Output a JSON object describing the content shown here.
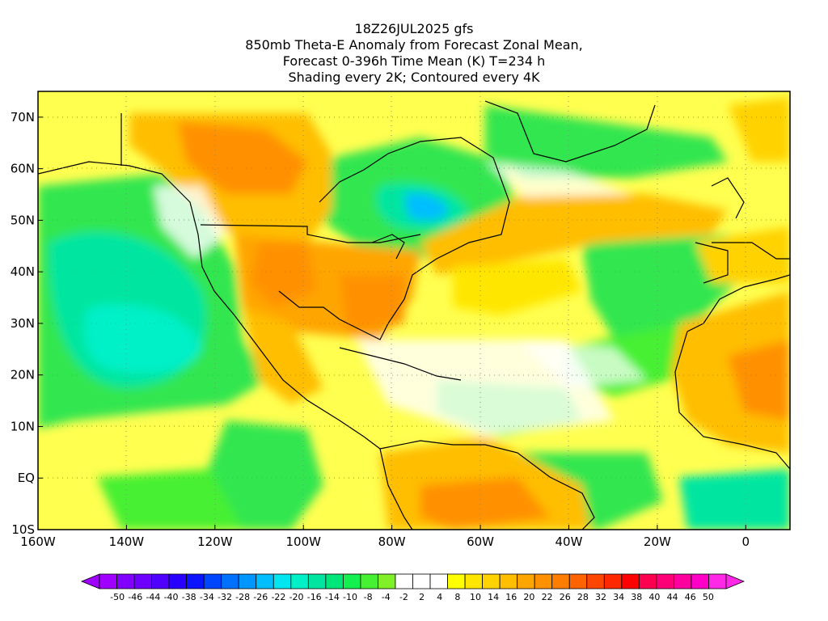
{
  "title": {
    "line1": "18Z26JUL2025 gfs",
    "line2": "850mb Theta-E Anomaly from Forecast Zonal Mean,",
    "line3": "Forecast 0-396h Time Mean (K) T=234 h",
    "line4": "Shading every 2K; Contoured every 4K"
  },
  "map": {
    "lon_range": [
      -160,
      10
    ],
    "lat_range": [
      -10,
      75
    ],
    "lon_ticks": [
      {
        "value": -160,
        "label": "160W"
      },
      {
        "value": -140,
        "label": "140W"
      },
      {
        "value": -120,
        "label": "120W"
      },
      {
        "value": -100,
        "label": "100W"
      },
      {
        "value": -80,
        "label": "80W"
      },
      {
        "value": -60,
        "label": "60W"
      },
      {
        "value": -40,
        "label": "40W"
      },
      {
        "value": -20,
        "label": "20W"
      },
      {
        "value": 0,
        "label": "0"
      }
    ],
    "lat_ticks": [
      {
        "value": 70,
        "label": "70N"
      },
      {
        "value": 60,
        "label": "60N"
      },
      {
        "value": 50,
        "label": "50N"
      },
      {
        "value": 40,
        "label": "40N"
      },
      {
        "value": 30,
        "label": "30N"
      },
      {
        "value": 20,
        "label": "20N"
      },
      {
        "value": 10,
        "label": "10N"
      },
      {
        "value": 0,
        "label": "EQ"
      },
      {
        "value": -10,
        "label": "10S"
      }
    ],
    "grid": "dotted"
  },
  "colorbar": {
    "labels": [
      "-50",
      "-46",
      "-44",
      "-40",
      "-38",
      "-34",
      "-32",
      "-28",
      "-26",
      "-22",
      "-20",
      "-16",
      "-14",
      "-10",
      "-8",
      "-4",
      "-2",
      "2",
      "4",
      "8",
      "10",
      "14",
      "16",
      "20",
      "22",
      "26",
      "28",
      "32",
      "34",
      "38",
      "40",
      "44",
      "46",
      "50"
    ],
    "colors": [
      "#a000ff",
      "#8200ff",
      "#6e00ff",
      "#5000ff",
      "#2800ff",
      "#0a14ff",
      "#0046ff",
      "#0070ff",
      "#0096ff",
      "#00beff",
      "#00e6f0",
      "#00f0c8",
      "#00e6a0",
      "#00e678",
      "#14f050",
      "#46f032",
      "#80f028",
      "#ffffff",
      "#ffffff",
      "#ffffff",
      "#ffff00",
      "#ffe600",
      "#ffd200",
      "#ffbe00",
      "#ffa500",
      "#ff9100",
      "#ff7d00",
      "#ff6400",
      "#ff4600",
      "#ff2800",
      "#ff0000",
      "#ff0050",
      "#ff0078",
      "#ff00a0",
      "#ff00c8",
      "#ff28e6"
    ]
  }
}
